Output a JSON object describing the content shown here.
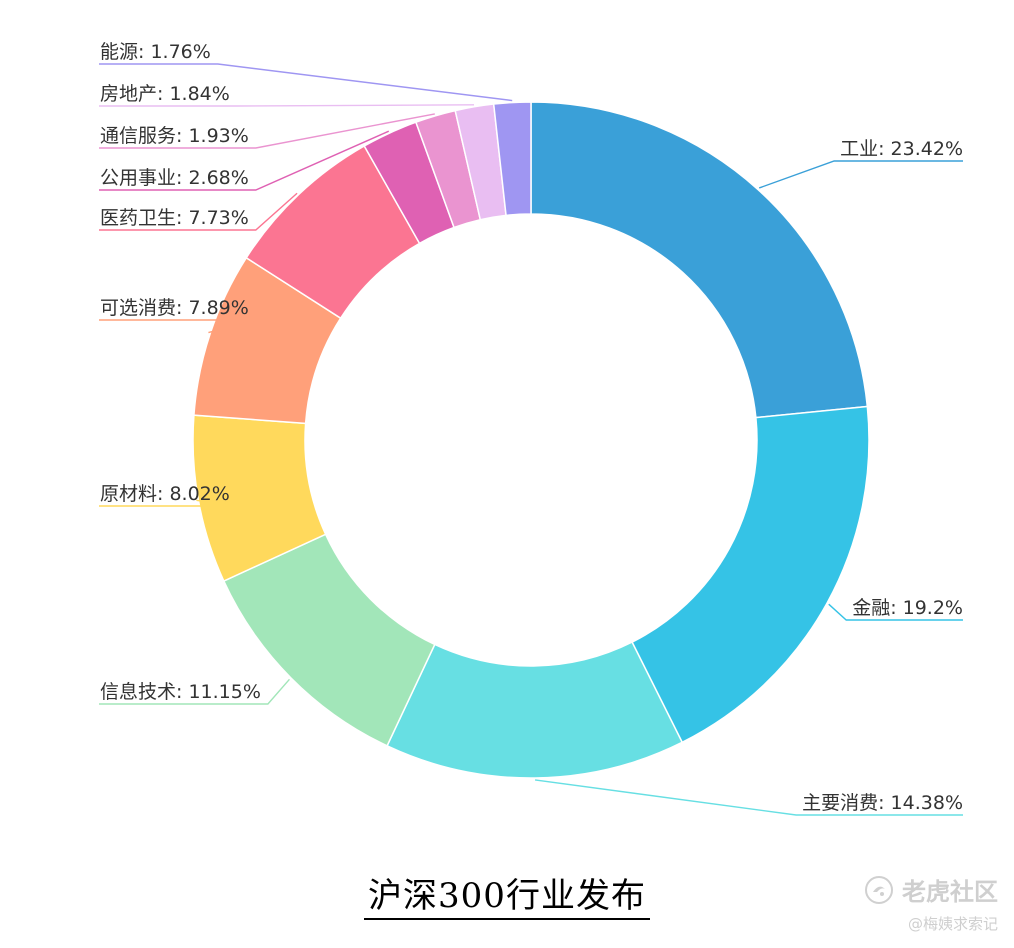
{
  "chart_data": {
    "type": "pie",
    "variant": "donut",
    "caption": "沪深300行业发布",
    "separator": ": ",
    "slices": [
      {
        "label": "工业",
        "value": 23.42,
        "display": "23.42%",
        "color": "#3aa0d8"
      },
      {
        "label": "金融",
        "value": 19.2,
        "display": "19.2%",
        "color": "#35c3e6"
      },
      {
        "label": "主要消费",
        "value": 14.38,
        "display": "14.38%",
        "color": "#67dfe3"
      },
      {
        "label": "信息技术",
        "value": 11.15,
        "display": "11.15%",
        "color": "#a2e6b9"
      },
      {
        "label": "原材料",
        "value": 8.02,
        "display": "8.02%",
        "color": "#ffd95c"
      },
      {
        "label": "可选消费",
        "value": 7.89,
        "display": "7.89%",
        "color": "#ffa07a"
      },
      {
        "label": "医药卫生",
        "value": 7.73,
        "display": "7.73%",
        "color": "#fb7592"
      },
      {
        "label": "公用事业",
        "value": 2.68,
        "display": "2.68%",
        "color": "#df61b3"
      },
      {
        "label": "通信服务",
        "value": 1.93,
        "display": "1.93%",
        "color": "#ea94d0"
      },
      {
        "label": "房地产",
        "value": 1.84,
        "display": "1.84%",
        "color": "#e9bef2"
      },
      {
        "label": "能源",
        "value": 1.76,
        "display": "1.76%",
        "color": "#9f96f2"
      }
    ]
  },
  "watermark": {
    "brand": "老虎社区",
    "sub": "@梅姨求索记"
  }
}
